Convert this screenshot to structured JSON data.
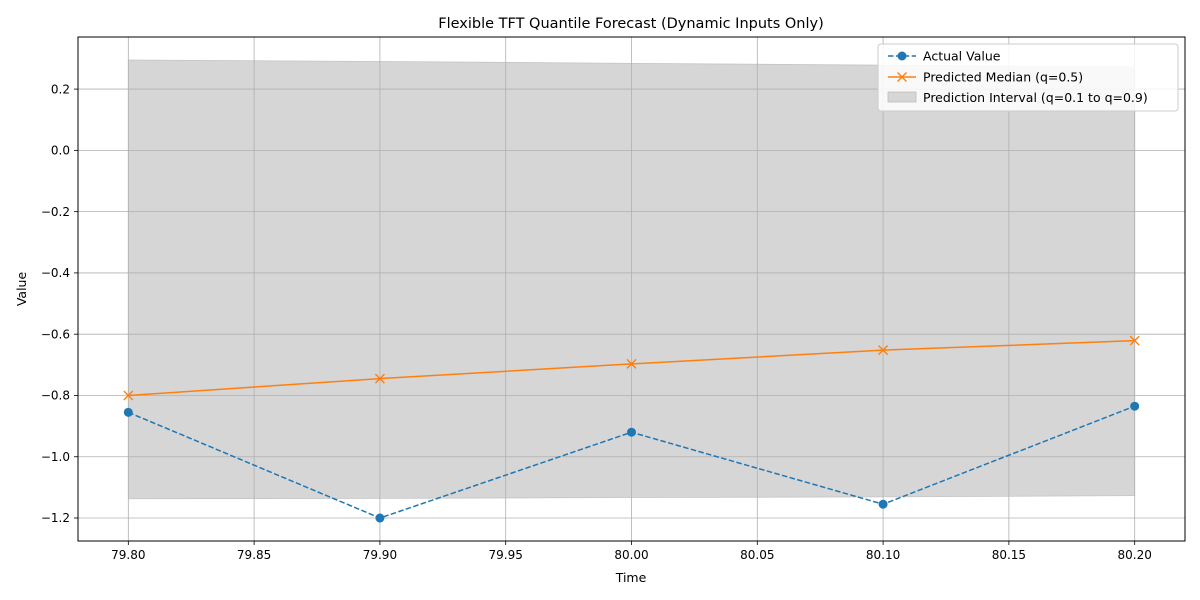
{
  "chart_data": {
    "type": "line",
    "title": "Flexible TFT Quantile Forecast (Dynamic Inputs Only)",
    "xlabel": "Time",
    "ylabel": "Value",
    "x": [
      79.8,
      79.9,
      80.0,
      80.1,
      80.2
    ],
    "xlim": [
      79.78,
      80.22
    ],
    "ylim": [
      -1.275,
      0.37
    ],
    "x_ticks": [
      79.8,
      79.85,
      79.9,
      79.95,
      80.0,
      80.05,
      80.1,
      80.15,
      80.2
    ],
    "x_tick_labels": [
      "79.80",
      "79.85",
      "79.90",
      "79.95",
      "80.00",
      "80.05",
      "80.10",
      "80.15",
      "80.20"
    ],
    "y_ticks": [
      0.2,
      0.0,
      -0.2,
      -0.4,
      -0.6,
      -0.8,
      -1.0,
      -1.2
    ],
    "y_tick_labels": [
      "0.2",
      "0.0",
      "−0.2",
      "−0.4",
      "−0.6",
      "−0.8",
      "−1.0",
      "−1.2"
    ],
    "grid": true,
    "legend_position": "top-right",
    "series": [
      {
        "name": "Actual Value",
        "values": [
          -0.855,
          -1.2,
          -0.92,
          -1.155,
          -0.835
        ],
        "color": "#1f77b4",
        "line_style": "dashed",
        "marker": "circle"
      },
      {
        "name": "Predicted Median (q=0.5)",
        "values": [
          -0.8,
          -0.745,
          -0.697,
          -0.652,
          -0.621
        ],
        "color": "#ff7f0e",
        "line_style": "solid",
        "marker": "x"
      }
    ],
    "interval": {
      "name": "Prediction Interval (q=0.1 to q=0.9)",
      "lower": [
        -1.137,
        -1.136,
        -1.133,
        -1.131,
        -1.127
      ],
      "upper": [
        0.295,
        0.29,
        0.284,
        0.278,
        0.272
      ],
      "color": "#d6d6d6"
    }
  }
}
